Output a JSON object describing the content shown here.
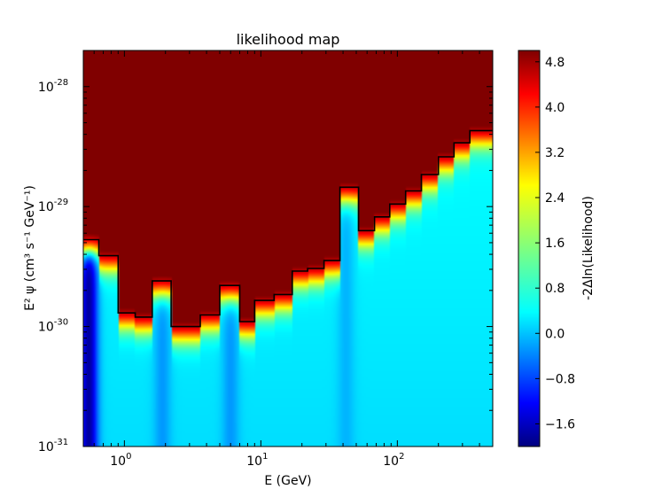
{
  "chart_data": {
    "type": "heatmap",
    "title": "likelihood map",
    "xlabel": "E (GeV)",
    "ylabel": "E² ψ (cm³ s⁻¹ GeV⁻¹)",
    "xscale": "log",
    "yscale": "log",
    "xlim": [
      0.5,
      500
    ],
    "ylim": [
      1e-31,
      2e-28
    ],
    "x_ticks": [
      {
        "value": 1,
        "base": "10",
        "exp": "0"
      },
      {
        "value": 10,
        "base": "10",
        "exp": "1"
      },
      {
        "value": 100,
        "base": "10",
        "exp": "2"
      }
    ],
    "y_ticks": [
      {
        "value": 1e-31,
        "base": "10",
        "exp": "-31"
      },
      {
        "value": 1e-30,
        "base": "10",
        "exp": "-30"
      },
      {
        "value": 1e-29,
        "base": "10",
        "exp": "-29"
      },
      {
        "value": 1e-28,
        "base": "10",
        "exp": "-28"
      }
    ],
    "colorbar": {
      "label": "-2Δln(Likelihood)",
      "min": -2.0,
      "max": 5.0,
      "ticks": [
        "4.8",
        "4.0",
        "3.2",
        "2.4",
        "1.6",
        "0.8",
        "0.0",
        "−0.8",
        "−1.6"
      ],
      "tick_values": [
        4.8,
        4.0,
        3.2,
        2.4,
        1.6,
        0.8,
        0.0,
        -0.8,
        -1.6
      ],
      "colormap": "jet"
    },
    "upper_limit_step": {
      "energy_bin_edges": [
        0.5,
        0.65,
        0.9,
        1.2,
        1.6,
        2.2,
        3.6,
        5.0,
        7.0,
        9.0,
        12.5,
        17.0,
        22.0,
        29.0,
        38.0,
        52.0,
        68.0,
        88.0,
        115.0,
        150.0,
        200.0,
        260.0,
        340.0,
        500.0
      ],
      "limit_values": [
        5.3e-30,
        3.9e-30,
        1.3e-30,
        1.2e-30,
        2.4e-30,
        1e-30,
        1.25e-30,
        2.2e-30,
        1.1e-30,
        1.65e-30,
        1.85e-30,
        2.9e-30,
        3.05e-30,
        3.55e-30,
        1.45e-29,
        6.3e-30,
        8.2e-30,
        1.05e-29,
        1.35e-29,
        1.85e-29,
        2.6e-29,
        3.4e-29,
        4.3e-29
      ]
    },
    "low_regions": [
      {
        "energy": 0.55,
        "level": -1.9
      },
      {
        "energy": 1.9,
        "level": -0.1
      },
      {
        "energy": 6.0,
        "level": -0.1
      },
      {
        "energy": 42.0,
        "level": 0.1
      }
    ],
    "grid": false
  }
}
